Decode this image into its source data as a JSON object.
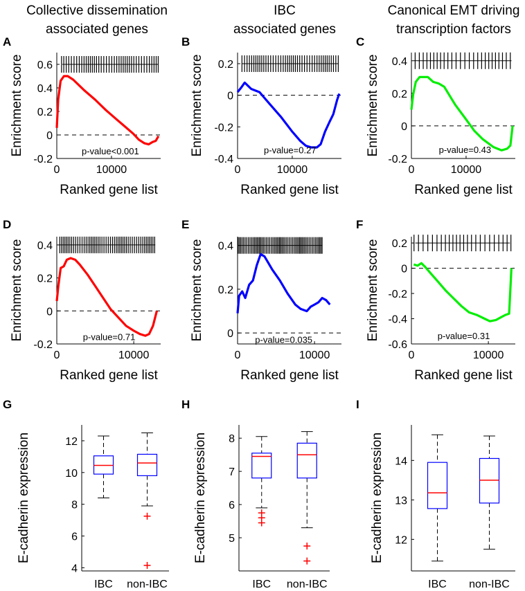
{
  "columns": [
    {
      "title1": "Collective dissemination",
      "title2": "associated genes"
    },
    {
      "title1": "IBC",
      "title2": "associated genes"
    },
    {
      "title1": "Canonical EMT driving",
      "title2": "transcription factors"
    }
  ],
  "colors": {
    "red": "#ff0000",
    "blue": "#0000ff",
    "green": "#00ee00",
    "box": "#0000ff",
    "median": "#ff0000",
    "outlier": "#ff0000"
  },
  "chart_data": [
    {
      "type": "line",
      "panel": "A",
      "color": "red",
      "xlabel": "Ranked gene list",
      "ylabel": "Enrichment score",
      "xlim": [
        0,
        19000
      ],
      "ylim": [
        -0.2,
        0.7
      ],
      "yticks": [
        "0.6",
        "0.4",
        "0.2",
        "0",
        "-0.2"
      ],
      "yticks_val": [
        0.6,
        0.4,
        0.2,
        0,
        -0.2
      ],
      "xticks": [
        "0",
        "10000"
      ],
      "xticks_val": [
        0,
        10000
      ],
      "annotation": "p-value<0.001",
      "annotation_x": 9800,
      "annotation_y": -0.135,
      "rug_y": 0.6,
      "rug_from": 1000,
      "rug_to": 18500,
      "rug_count": 42,
      "x": [
        0,
        250,
        700,
        1300,
        2000,
        3000,
        5000,
        7000,
        9000,
        11000,
        12500,
        14000,
        15000,
        16000,
        16800,
        17500,
        18100,
        18600
      ],
      "y": [
        0.06,
        0.3,
        0.46,
        0.5,
        0.5,
        0.47,
        0.38,
        0.3,
        0.21,
        0.13,
        0.07,
        0.01,
        -0.04,
        -0.07,
        -0.08,
        -0.06,
        -0.05,
        -0.01
      ]
    },
    {
      "type": "line",
      "panel": "B",
      "color": "blue",
      "xlabel": "Ranked gene list",
      "ylabel": "Enrichment score",
      "xlim": [
        0,
        19000
      ],
      "ylim": [
        -0.4,
        0.27
      ],
      "yticks": [
        "0.2",
        "0",
        "-0.2",
        "-0.4"
      ],
      "yticks_val": [
        0.2,
        0,
        -0.2,
        -0.4
      ],
      "xticks": [
        "0",
        "10000"
      ],
      "xticks_val": [
        0,
        10000
      ],
      "annotation": "p-value=0.27",
      "annotation_x": 9600,
      "annotation_y": -0.345,
      "rug_y": 0.2,
      "rug_from": 800,
      "rug_to": 18500,
      "rug_count": 44,
      "x": [
        0,
        700,
        1300,
        2500,
        4000,
        6000,
        8000,
        10000,
        11500,
        12500,
        13500,
        14500,
        15200,
        16000,
        16800,
        17500,
        18200,
        18600
      ],
      "y": [
        0.02,
        0.05,
        0.08,
        0.04,
        0.02,
        -0.06,
        -0.14,
        -0.23,
        -0.29,
        -0.32,
        -0.33,
        -0.33,
        -0.31,
        -0.23,
        -0.17,
        -0.12,
        -0.03,
        0.01
      ]
    },
    {
      "type": "line",
      "panel": "C",
      "color": "green",
      "xlabel": "Ranked gene list",
      "ylabel": "Enrichment score",
      "xlim": [
        0,
        19000
      ],
      "ylim": [
        -0.2,
        0.45
      ],
      "yticks": [
        "0.4",
        "0.2",
        "0",
        "-0.2"
      ],
      "yticks_val": [
        0.4,
        0.2,
        0,
        -0.2
      ],
      "xticks": [
        "0",
        "10000"
      ],
      "xticks_val": [
        0,
        10000
      ],
      "annotation": "p-value=0.43",
      "annotation_x": 9800,
      "annotation_y": -0.145,
      "rug_y": 0.4,
      "rug_from": 500,
      "rug_to": 18300,
      "rug_count": 26,
      "x": [
        0,
        300,
        800,
        1500,
        2200,
        3000,
        4000,
        5000,
        6000,
        8000,
        10000,
        11500,
        13000,
        15000,
        16500,
        17500,
        18100,
        18500
      ],
      "y": [
        0.1,
        0.19,
        0.27,
        0.3,
        0.3,
        0.3,
        0.27,
        0.26,
        0.24,
        0.13,
        0.04,
        -0.03,
        -0.08,
        -0.13,
        -0.15,
        -0.14,
        -0.12,
        0.0
      ]
    },
    {
      "type": "line",
      "panel": "D",
      "color": "red",
      "xlabel": "Ranked gene list",
      "ylabel": "Enrichment score",
      "xlim": [
        0,
        13500
      ],
      "ylim": [
        -0.2,
        0.45
      ],
      "yticks": [
        "0.4",
        "0.2",
        "0",
        "-0.2"
      ],
      "yticks_val": [
        0.4,
        0.2,
        0,
        -0.2
      ],
      "xticks": [
        "0",
        "10000"
      ],
      "xticks_val": [
        0,
        10000
      ],
      "annotation": "p-value=0.71",
      "annotation_x": 6800,
      "annotation_y": -0.155,
      "rug_y": 0.4,
      "rug_from": 300,
      "rug_to": 12800,
      "rug_count": 52,
      "x": [
        0,
        200,
        500,
        900,
        1300,
        1800,
        2400,
        3000,
        4000,
        5000,
        6000,
        7000,
        8000,
        9000,
        10000,
        10800,
        11500,
        12000,
        12500,
        13000
      ],
      "y": [
        0.06,
        0.15,
        0.26,
        0.27,
        0.31,
        0.32,
        0.31,
        0.28,
        0.22,
        0.15,
        0.08,
        0.01,
        -0.04,
        -0.09,
        -0.12,
        -0.14,
        -0.15,
        -0.14,
        -0.09,
        0.0
      ]
    },
    {
      "type": "line",
      "panel": "E",
      "color": "blue",
      "xlabel": "Ranked gene list",
      "ylabel": "Enrichment score",
      "xlim": [
        0,
        13500
      ],
      "ylim": [
        -0.05,
        0.44
      ],
      "yticks": [
        "0.4",
        "0.2",
        "0"
      ],
      "yticks_val": [
        0.4,
        0.2,
        0
      ],
      "xticks": [
        "0",
        "10000"
      ],
      "xticks_val": [
        0,
        10000
      ],
      "annotation": "p-value=0.035",
      "annotation_x": 6000,
      "annotation_y": -0.03,
      "rug_y": 0.4,
      "rug_from": 100,
      "rug_to": 11000,
      "rug_count": 60,
      "x": [
        0,
        200,
        600,
        1000,
        1500,
        2000,
        2500,
        3000,
        3500,
        4500,
        5500,
        6500,
        7500,
        8200,
        9000,
        9500,
        10000,
        10500,
        11000,
        11500,
        12000
      ],
      "y": [
        0.09,
        0.17,
        0.19,
        0.16,
        0.22,
        0.24,
        0.31,
        0.36,
        0.35,
        0.29,
        0.24,
        0.18,
        0.13,
        0.11,
        0.1,
        0.12,
        0.13,
        0.14,
        0.16,
        0.15,
        0.13
      ]
    },
    {
      "type": "line",
      "panel": "F",
      "color": "green",
      "xlabel": "Ranked gene list",
      "ylabel": "Enrichment score",
      "xlim": [
        0,
        13500
      ],
      "ylim": [
        -0.6,
        0.25
      ],
      "yticks": [
        "0.2",
        "0",
        "-0.2",
        "-0.4",
        "-0.6"
      ],
      "yticks_val": [
        0.2,
        0,
        -0.2,
        -0.4,
        -0.6
      ],
      "xticks": [
        "0",
        "10000"
      ],
      "xticks_val": [
        0,
        10000
      ],
      "annotation": "p-value=0.31",
      "annotation_x": 6800,
      "annotation_y": -0.535,
      "rug_y": 0.2,
      "rug_from": 500,
      "rug_to": 12800,
      "rug_count": 24,
      "x": [
        300,
        800,
        1300,
        1800,
        2500,
        3500,
        4500,
        5500,
        6500,
        7500,
        8500,
        9500,
        10200,
        11000,
        11600,
        12200,
        12700,
        13000
      ],
      "y": [
        0.03,
        0.02,
        0.04,
        0.01,
        -0.04,
        -0.11,
        -0.18,
        -0.24,
        -0.3,
        -0.35,
        -0.37,
        -0.4,
        -0.42,
        -0.41,
        -0.39,
        -0.37,
        -0.36,
        0.0
      ]
    },
    {
      "type": "box",
      "panel": "G",
      "ylabel": "E-cadherin expression",
      "categories": [
        "IBC",
        "non-IBC"
      ],
      "ylim": [
        3.8,
        13.0
      ],
      "yticks": [
        "12",
        "10",
        "8",
        "6",
        "4"
      ],
      "yticks_val": [
        12,
        10,
        8,
        6,
        4
      ],
      "boxes": [
        {
          "whislo": 8.4,
          "q1": 9.9,
          "med": 10.45,
          "q3": 11.05,
          "whishi": 12.3,
          "outliers": []
        },
        {
          "whislo": 7.9,
          "q1": 9.8,
          "med": 10.6,
          "q3": 11.15,
          "whishi": 12.5,
          "outliers": [
            7.25,
            4.15
          ]
        }
      ]
    },
    {
      "type": "box",
      "panel": "H",
      "ylabel": "E-cadherin expression",
      "categories": [
        "IBC",
        "non-IBC"
      ],
      "ylim": [
        4.0,
        8.4
      ],
      "yticks": [
        "8",
        "7",
        "6",
        "5"
      ],
      "yticks_val": [
        8,
        7,
        6,
        5
      ],
      "boxes": [
        {
          "whislo": 5.9,
          "q1": 6.8,
          "med": 7.45,
          "q3": 7.55,
          "whishi": 8.05,
          "outliers": [
            5.75,
            5.6,
            5.45
          ]
        },
        {
          "whislo": 5.3,
          "q1": 6.8,
          "med": 7.5,
          "q3": 7.85,
          "whishi": 8.2,
          "outliers": [
            4.75,
            4.3
          ]
        }
      ]
    },
    {
      "type": "box",
      "panel": "I",
      "ylabel": "E-cadherin expression",
      "categories": [
        "IBC",
        "non-IBC"
      ],
      "ylim": [
        11.2,
        14.9
      ],
      "yticks": [
        "14",
        "13",
        "12"
      ],
      "yticks_val": [
        14,
        13,
        12
      ],
      "boxes": [
        {
          "whislo": 11.45,
          "q1": 12.78,
          "med": 13.18,
          "q3": 13.95,
          "whishi": 14.65,
          "outliers": []
        },
        {
          "whislo": 11.75,
          "q1": 12.92,
          "med": 13.5,
          "q3": 14.05,
          "whishi": 14.62,
          "outliers": []
        }
      ]
    }
  ]
}
